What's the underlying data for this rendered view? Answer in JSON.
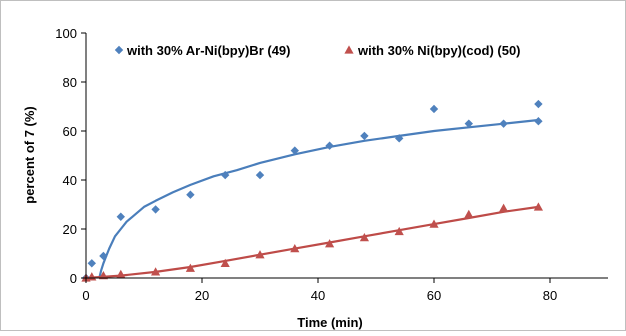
{
  "chart_data": {
    "type": "scatter",
    "title": "",
    "xlabel": "Time (min)",
    "ylabel": "percent of 7 (%)",
    "xlim": [
      0,
      90
    ],
    "ylim": [
      0,
      100
    ],
    "x_ticks": [
      0,
      20,
      40,
      60,
      80
    ],
    "y_ticks": [
      0,
      20,
      40,
      60,
      80,
      100
    ],
    "grid": false,
    "legend_position": "top",
    "series": [
      {
        "name": "with 30% Ar-Ni(bpy)Br (49)",
        "marker": "diamond",
        "color": "#4f81bd",
        "x": [
          0,
          1,
          3,
          6,
          12,
          18,
          24,
          30,
          36,
          42,
          48,
          54,
          60,
          66,
          72,
          78,
          78
        ],
        "y": [
          0,
          6,
          9,
          25,
          28,
          34,
          42,
          42,
          52,
          54,
          58,
          57,
          69,
          63,
          63,
          71,
          64
        ],
        "trendline": {
          "type": "log",
          "color": "#4a7ebb",
          "x": [
            2.3,
            2.6,
            3,
            3.5,
            4,
            5,
            6,
            7,
            8,
            10,
            12,
            15,
            18,
            22,
            26,
            30,
            36,
            42,
            48,
            54,
            60,
            66,
            72,
            78
          ],
          "y": [
            0,
            3,
            6,
            9,
            12,
            17,
            20,
            23,
            25,
            29,
            31.5,
            35,
            38,
            41.5,
            44,
            47,
            50.5,
            53.5,
            56,
            58,
            60,
            61.5,
            63,
            64.5
          ]
        }
      },
      {
        "name": "with 30% Ni(bpy)(cod) (50)",
        "marker": "triangle",
        "color": "#c0504d",
        "x": [
          0,
          1,
          3,
          6,
          12,
          18,
          24,
          30,
          36,
          42,
          48,
          54,
          60,
          66,
          72,
          78
        ],
        "y": [
          0,
          0.5,
          1,
          1.5,
          2.5,
          4,
          6,
          9.5,
          12,
          14,
          16.5,
          19,
          22,
          26,
          28.5,
          29
        ],
        "trendline": {
          "type": "poly",
          "color": "#be4b48",
          "x": [
            0,
            6,
            12,
            18,
            24,
            30,
            36,
            42,
            48,
            54,
            60,
            66,
            72,
            78
          ],
          "y": [
            0,
            1,
            2.5,
            4.5,
            7,
            9.5,
            12,
            14.5,
            17,
            19.5,
            22,
            24.5,
            27,
            29
          ]
        }
      }
    ]
  }
}
